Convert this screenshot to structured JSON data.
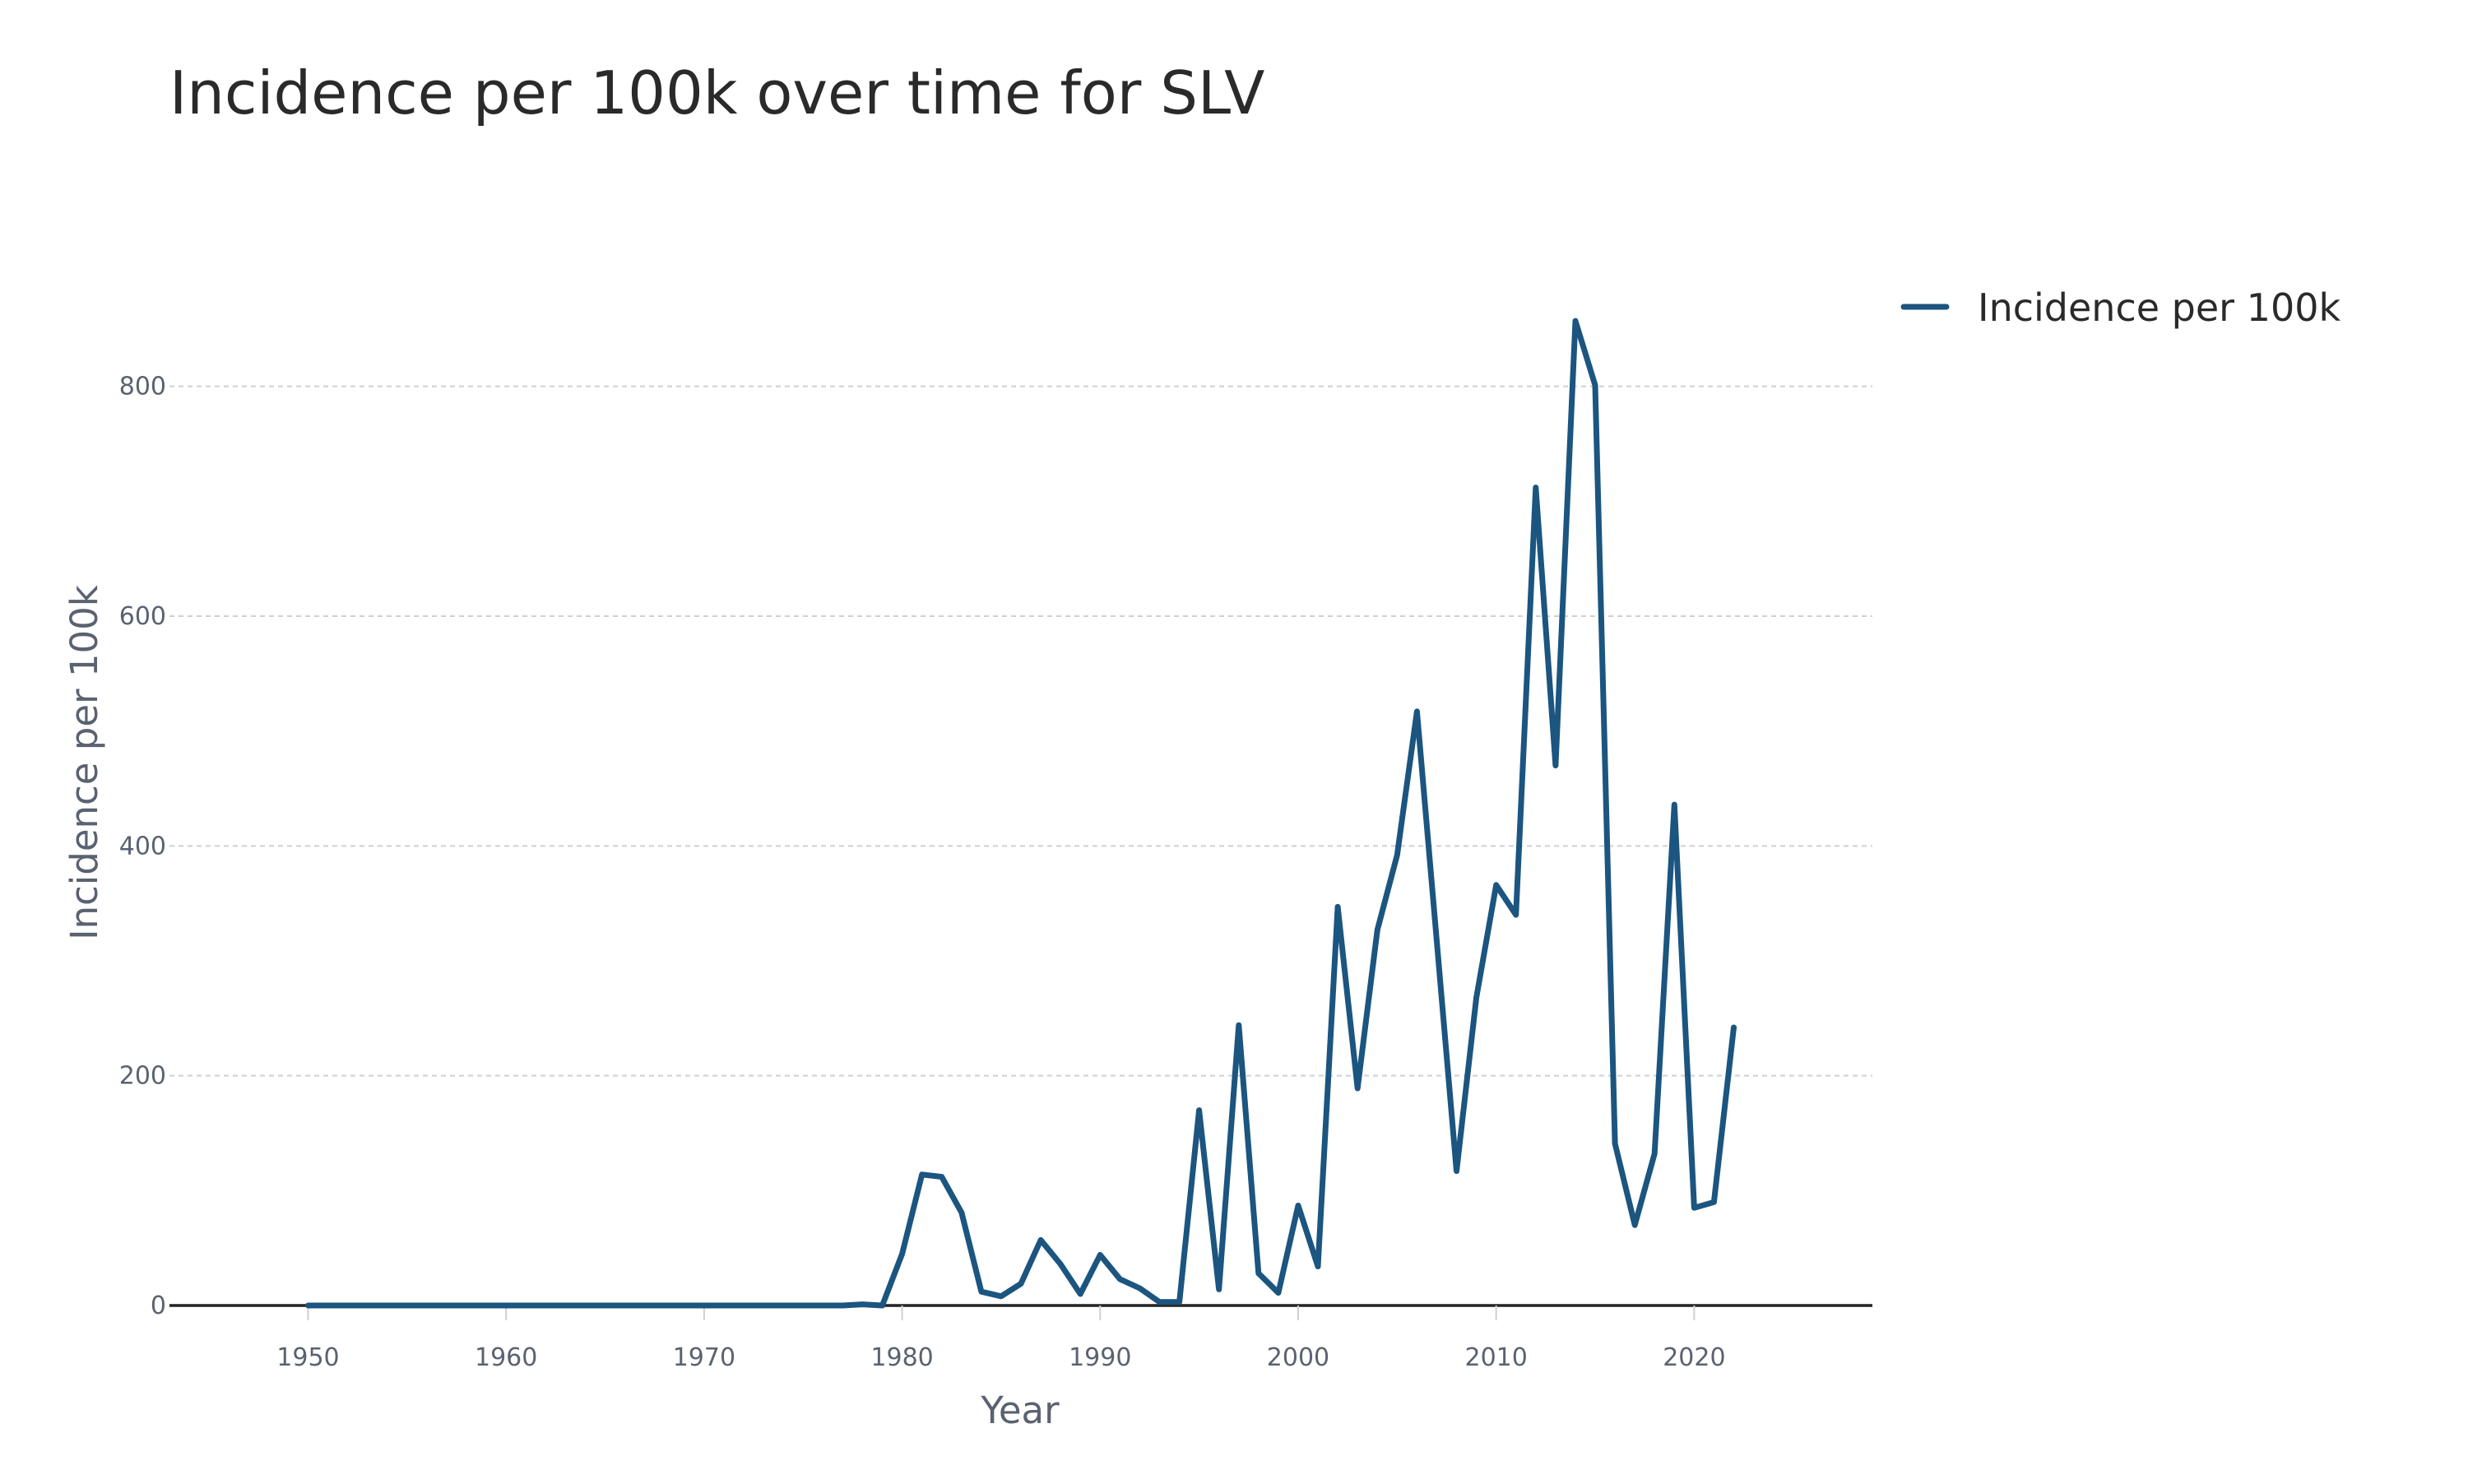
{
  "chart_data": {
    "type": "line",
    "title": "Incidence per 100k over time for SLV",
    "xlabel": "Year",
    "ylabel": "Incidence per 100k",
    "xlim": [
      1943,
      2029
    ],
    "ylim": [
      0,
      900
    ],
    "x_ticks": [
      1950,
      1960,
      1970,
      1980,
      1990,
      2000,
      2010,
      2020
    ],
    "y_ticks": [
      0,
      200,
      400,
      600,
      800
    ],
    "grid": true,
    "legend_position": "top-right",
    "series": [
      {
        "name": "Incidence per 100k",
        "color": "#1b5580",
        "x": [
          1950,
          1951,
          1952,
          1953,
          1954,
          1955,
          1956,
          1957,
          1958,
          1959,
          1960,
          1961,
          1962,
          1963,
          1964,
          1965,
          1966,
          1967,
          1968,
          1969,
          1970,
          1971,
          1972,
          1973,
          1974,
          1975,
          1976,
          1977,
          1978,
          1979,
          1980,
          1981,
          1982,
          1983,
          1984,
          1985,
          1986,
          1987,
          1988,
          1989,
          1990,
          1991,
          1992,
          1993,
          1994,
          1995,
          1996,
          1997,
          1998,
          1999,
          2000,
          2001,
          2002,
          2003,
          2004,
          2005,
          2006,
          2007,
          2008,
          2009,
          2010,
          2011,
          2012,
          2013,
          2014,
          2015,
          2016,
          2017,
          2018,
          2019,
          2020,
          2021,
          2022
        ],
        "values": [
          0,
          0,
          0,
          0,
          0,
          0,
          0,
          0,
          0,
          0,
          0,
          0,
          0,
          0,
          0,
          0,
          0,
          0,
          0,
          0,
          0,
          0,
          0,
          0,
          0,
          0,
          0,
          0,
          1,
          0,
          45,
          114,
          112,
          81,
          12,
          8,
          19,
          57,
          36,
          10,
          44,
          23,
          15,
          3,
          3,
          170,
          14,
          244,
          28,
          11,
          87,
          34,
          347,
          189,
          327,
          392,
          517,
          317,
          117,
          268,
          366,
          340,
          712,
          470,
          857,
          801,
          141,
          70,
          132,
          436,
          85,
          90,
          242
        ]
      }
    ]
  }
}
